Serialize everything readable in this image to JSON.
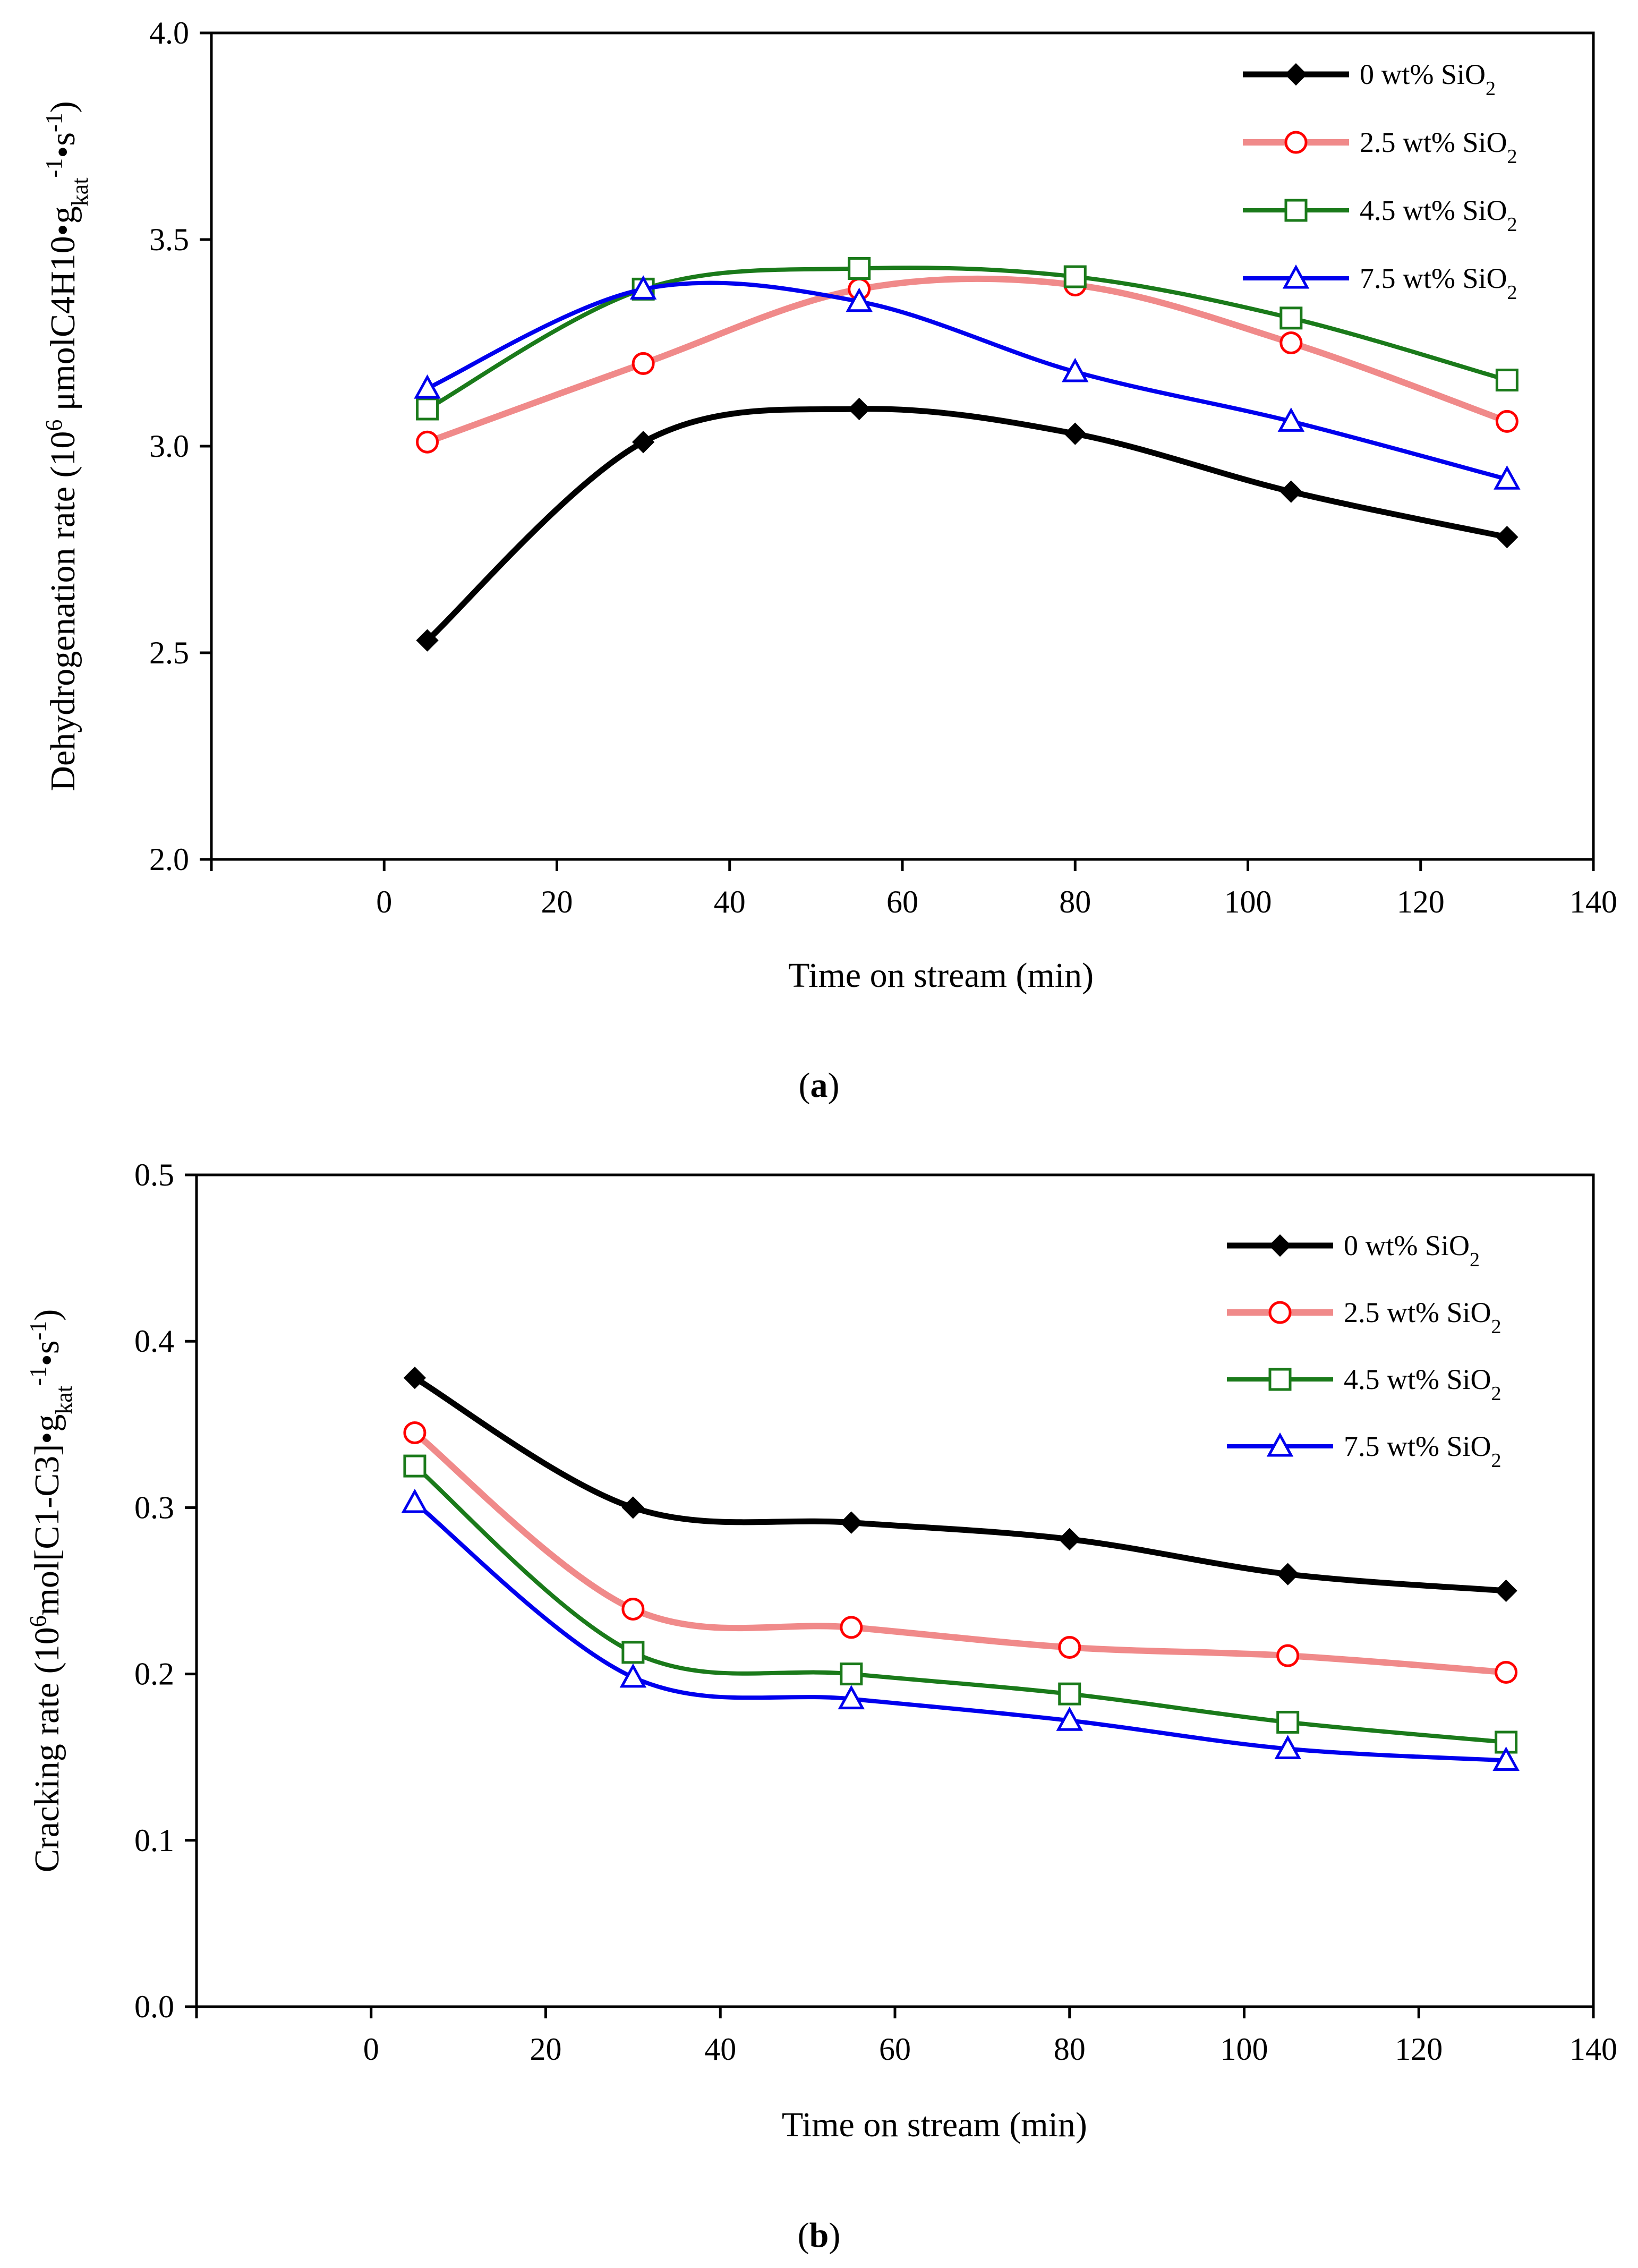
{
  "chart_data": [
    {
      "type": "line",
      "panel": "a",
      "caption": {
        "open": "(",
        "letter": "a",
        "close": ")"
      },
      "xlabel": "Time on stream (min)",
      "ylabel": {
        "prefix": "Dehydrogenation rate (10",
        "exp": "6",
        "unit": " μmolC4H10•g",
        "sub": "kat",
        "exp2": "-1",
        "mid": "•s",
        "exp3": "-1",
        "suffix": ")"
      },
      "xlim": [
        -20,
        140
      ],
      "ylim": [
        2.0,
        4.0
      ],
      "xticks": [
        0,
        20,
        40,
        60,
        80,
        100,
        120,
        140
      ],
      "xtick_labels": [
        "0",
        "20",
        "40",
        "60",
        "80",
        "100",
        "120",
        "140"
      ],
      "yticks": [
        2.0,
        2.5,
        3.0,
        3.5,
        4.0
      ],
      "ytick_labels": [
        "2.0",
        "2.5",
        "3.0",
        "3.5",
        "4.0"
      ],
      "grid": false,
      "legend_position": "top-right",
      "x": [
        5,
        30,
        55,
        80,
        105,
        130
      ],
      "series": [
        {
          "name": "0 wt% SiO2",
          "label_main": "0 wt% SiO",
          "label_sub": "2",
          "color": "#000000",
          "marker": "diamond",
          "values": [
            2.53,
            3.01,
            3.09,
            3.03,
            2.89,
            2.78
          ]
        },
        {
          "name": "2.5 wt% SiO2",
          "label_main": "2.5 wt% SiO",
          "label_sub": "2",
          "color": "#ff0000",
          "line_color": "#f08a8a",
          "marker": "circle",
          "values": [
            3.01,
            3.2,
            3.38,
            3.39,
            3.25,
            3.06
          ]
        },
        {
          "name": "4.5 wt% SiO2",
          "label_main": "4.5 wt% SiO",
          "label_sub": "2",
          "color": "#1a7a1a",
          "marker": "square",
          "values": [
            3.09,
            3.38,
            3.43,
            3.41,
            3.31,
            3.16
          ]
        },
        {
          "name": "7.5 wt% SiO2",
          "label_main": "7.5 wt% SiO",
          "label_sub": "2",
          "color": "#0000ee",
          "marker": "triangle",
          "values": [
            3.14,
            3.38,
            3.35,
            3.18,
            3.06,
            2.92
          ]
        }
      ]
    },
    {
      "type": "line",
      "panel": "b",
      "caption": {
        "open": "(",
        "letter": "b",
        "close": ")"
      },
      "xlabel": "Time on stream (min)",
      "ylabel": {
        "prefix": "Cracking rate (10",
        "exp": "6",
        "unit": "mol[C1-C3]•g",
        "sub": "kat",
        "exp2": "-1",
        "mid": "•s",
        "exp3": "-1",
        "suffix": ")"
      },
      "xlim": [
        -20,
        140
      ],
      "ylim": [
        0.0,
        0.5
      ],
      "xticks": [
        0,
        20,
        40,
        60,
        80,
        100,
        120,
        140
      ],
      "xtick_labels": [
        "0",
        "20",
        "40",
        "60",
        "80",
        "100",
        "120",
        "140"
      ],
      "yticks": [
        0.0,
        0.1,
        0.2,
        0.3,
        0.4,
        0.5
      ],
      "ytick_labels": [
        "0.0",
        "0.1",
        "0.2",
        "0.3",
        "0.4",
        "0.5"
      ],
      "grid": false,
      "legend_position": "top-right",
      "x": [
        5,
        30,
        55,
        80,
        105,
        130
      ],
      "series": [
        {
          "name": "0 wt% SiO2",
          "label_main": "0 wt% SiO",
          "label_sub": "2",
          "color": "#000000",
          "marker": "diamond",
          "values": [
            0.378,
            0.3,
            0.291,
            0.281,
            0.26,
            0.25
          ]
        },
        {
          "name": "2.5 wt% SiO2",
          "label_main": "2.5 wt% SiO",
          "label_sub": "2",
          "color": "#ff0000",
          "line_color": "#f08a8a",
          "marker": "circle",
          "values": [
            0.345,
            0.239,
            0.228,
            0.216,
            0.211,
            0.201
          ]
        },
        {
          "name": "4.5 wt% SiO2",
          "label_main": "4.5 wt% SiO",
          "label_sub": "2",
          "color": "#1a7a1a",
          "marker": "square",
          "values": [
            0.325,
            0.213,
            0.2,
            0.188,
            0.171,
            0.159
          ]
        },
        {
          "name": "7.5 wt% SiO2",
          "label_main": "7.5 wt% SiO",
          "label_sub": "2",
          "color": "#0000ee",
          "marker": "triangle",
          "values": [
            0.303,
            0.198,
            0.185,
            0.172,
            0.155,
            0.148
          ]
        }
      ]
    }
  ]
}
